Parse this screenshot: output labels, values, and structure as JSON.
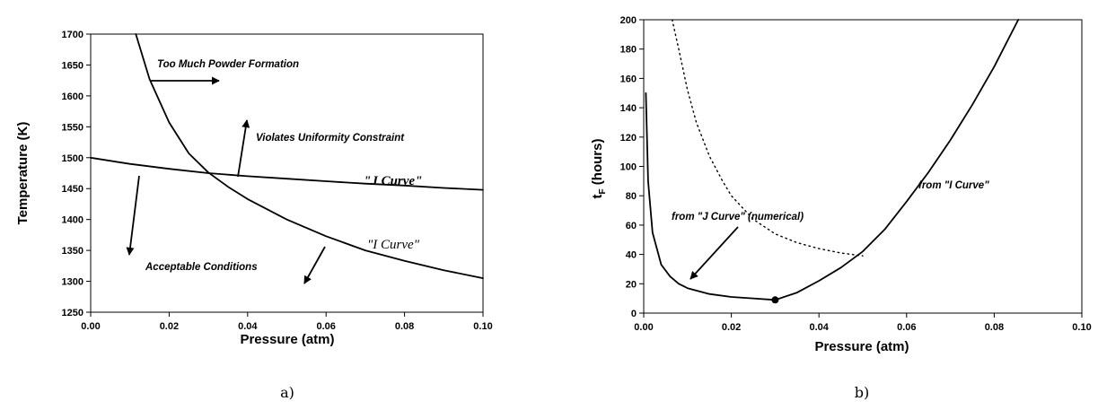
{
  "chart_data": [
    {
      "type": "line",
      "panel_label": "a)",
      "xlabel": "Pressure (atm)",
      "ylabel": "Temperature (K)",
      "xlim": [
        0.0,
        0.1
      ],
      "ylim": [
        1250,
        1700
      ],
      "xticks": [
        "0.00",
        "0.02",
        "0.04",
        "0.06",
        "0.08",
        "0.10"
      ],
      "yticks": [
        "1250",
        "1300",
        "1350",
        "1400",
        "1450",
        "1500",
        "1550",
        "1600",
        "1650",
        "1700"
      ],
      "grid": false,
      "series": [
        {
          "name": "\"J Curve\"",
          "x": [
            0.0,
            0.01,
            0.02,
            0.03,
            0.04,
            0.05,
            0.06,
            0.07,
            0.08,
            0.09,
            0.1
          ],
          "y": [
            1500,
            1490,
            1482,
            1475,
            1470,
            1466,
            1462,
            1458,
            1455,
            1451,
            1448
          ]
        },
        {
          "name": "\"I Curve\"",
          "x": [
            0.0115,
            0.015,
            0.02,
            0.025,
            0.03,
            0.035,
            0.04,
            0.05,
            0.06,
            0.07,
            0.08,
            0.09,
            0.1
          ],
          "y": [
            1700,
            1627,
            1557,
            1507,
            1476,
            1453,
            1433,
            1400,
            1373,
            1350,
            1333,
            1318,
            1305
          ]
        }
      ],
      "annotations": {
        "powder": "Too Much Powder Formation",
        "uniformity": "Violates Uniformity Constraint",
        "acceptable": "Acceptable  Conditions",
        "j_curve": "\"J Curve\"",
        "i_curve": "\"I Curve\""
      }
    },
    {
      "type": "line",
      "panel_label": "b)",
      "xlabel": "Pressure (atm)",
      "ylabel_main": "t",
      "ylabel_sub": "F",
      "ylabel_rest": " (hours)",
      "xlim": [
        0.0,
        0.1
      ],
      "ylim": [
        0,
        200
      ],
      "xticks": [
        "0.00",
        "0.02",
        "0.04",
        "0.06",
        "0.08",
        "0.10"
      ],
      "yticks": [
        "0",
        "20",
        "40",
        "60",
        "80",
        "100",
        "120",
        "140",
        "160",
        "180",
        "200"
      ],
      "grid": false,
      "series": [
        {
          "name": "from \"J Curve\" (numerical)",
          "style": "solid",
          "x": [
            0.0005,
            0.001,
            0.002,
            0.004,
            0.006,
            0.008,
            0.01,
            0.015,
            0.02,
            0.025,
            0.03
          ],
          "y": [
            150,
            90,
            55,
            33,
            25,
            20,
            17,
            13,
            11,
            10,
            9
          ]
        },
        {
          "name": "from \"I Curve\"",
          "style": "solid",
          "x": [
            0.03,
            0.035,
            0.04,
            0.045,
            0.05,
            0.055,
            0.06,
            0.065,
            0.07,
            0.075,
            0.08,
            0.0855
          ],
          "y": [
            9,
            14,
            22,
            31,
            42,
            57,
            76,
            96,
            118,
            142,
            168,
            200
          ]
        },
        {
          "name": "dotted",
          "style": "dotted",
          "x": [
            0.0065,
            0.008,
            0.01,
            0.012,
            0.015,
            0.018,
            0.02,
            0.025,
            0.03,
            0.035,
            0.04,
            0.045,
            0.05
          ],
          "y": [
            200,
            180,
            152,
            130,
            107,
            90,
            80,
            64,
            54,
            48,
            44,
            41,
            39
          ]
        }
      ],
      "optimum_point": {
        "x": 0.03,
        "y": 9
      },
      "annotations": {
        "j_curve": "from \"J Curve\" (numerical)",
        "i_curve": "from \"I Curve\""
      }
    }
  ]
}
